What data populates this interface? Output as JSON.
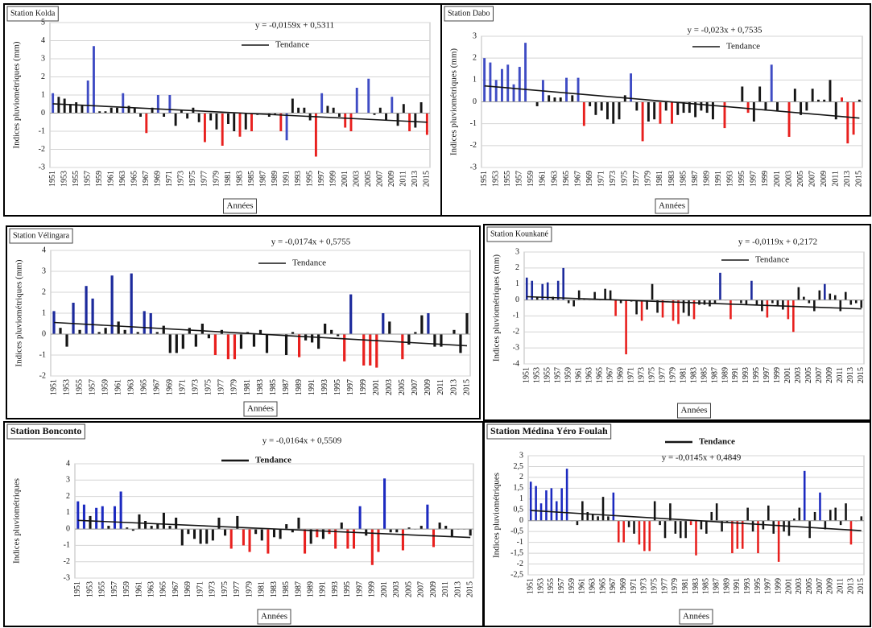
{
  "chart_data": [
    {
      "type": "bar",
      "title": "Station Kolda",
      "ylabel": "Indices pluviométriques (mm)",
      "xlabel": "Années",
      "legend": "Tendance",
      "trend": {
        "label": "y = -0,0159x + 0,5311",
        "slope": -0.0159,
        "intercept": 0.5311
      },
      "categories": [
        "1951",
        null,
        "1953",
        null,
        "1955",
        null,
        "1957",
        null,
        "1959",
        null,
        "1961",
        null,
        "1963",
        null,
        "1965",
        null,
        "1967",
        null,
        "1969",
        null,
        "1971",
        null,
        "1973",
        null,
        "1975",
        null,
        "1977",
        null,
        "1979",
        null,
        "1981",
        null,
        "1983",
        null,
        "1985",
        null,
        "1987",
        null,
        "1989",
        null,
        "1991",
        null,
        "1993",
        null,
        "1995",
        null,
        "1997",
        null,
        "1999",
        null,
        "2001",
        null,
        "2003",
        null,
        "2005",
        null,
        "2007",
        null,
        "2009",
        null,
        "2011",
        null,
        "2013",
        null,
        "2015"
      ],
      "values": [
        1.1,
        0.9,
        0.8,
        0.5,
        0.6,
        0.4,
        1.8,
        3.7,
        0.1,
        0.1,
        0.3,
        0.3,
        1.1,
        0.4,
        0.3,
        -0.2,
        -1.1,
        0.3,
        1.0,
        -0.2,
        1.0,
        -0.7,
        0.2,
        -0.3,
        0.3,
        -0.5,
        -1.6,
        -0.4,
        -0.9,
        -1.8,
        -0.6,
        -1.0,
        -1.3,
        -0.9,
        -1.0,
        -0.1,
        0.0,
        -0.2,
        -0.1,
        -1.0,
        -1.5,
        0.8,
        0.3,
        0.3,
        -0.4,
        -2.4,
        1.1,
        0.4,
        0.3,
        -0.2,
        -0.8,
        -1.0,
        1.4,
        0.0,
        1.9,
        -0.1,
        0.3,
        -0.4,
        0.9,
        -0.7,
        0.5,
        -1.0,
        -0.8,
        0.6,
        -1.2
      ],
      "bar_colors": "bkkkkkbbkkkkbkkkrkbkbkkkkkrkkrkkrkrkkkkrbkkkkrbkkkrrbkbkkkbkkrkkr",
      "palette": {
        "b": "#3f4cc4",
        "k": "#151515",
        "r": "#e8201e"
      },
      "trend_color": "#151515",
      "ylim": [
        -3,
        5
      ],
      "yticks": [
        -3,
        -2,
        -1,
        0,
        1,
        2,
        3,
        4,
        5
      ],
      "grid": true
    },
    {
      "type": "bar",
      "title": "Station Dabo",
      "ylabel": "Indices pluviométriques (mm)",
      "xlabel": "Années",
      "legend": "Tendance",
      "trend": {
        "label": "y = -0,023x + 0,7535",
        "slope": -0.023,
        "intercept": 0.7535
      },
      "categories": [
        "1951",
        null,
        "1953",
        null,
        "1955",
        null,
        "1957",
        null,
        "1959",
        null,
        "1961",
        null,
        "1963",
        null,
        "1965",
        null,
        "1967",
        null,
        "1969",
        null,
        "1971",
        null,
        "1973",
        null,
        "1975",
        null,
        "1977",
        null,
        "1979",
        null,
        "1981",
        null,
        "1983",
        null,
        "1985",
        null,
        "1987",
        null,
        "1989",
        null,
        "1991",
        null,
        "1993",
        null,
        "1995",
        null,
        "1997",
        null,
        "1999",
        null,
        "2001",
        null,
        "2003",
        null,
        "2005",
        null,
        "2007",
        null,
        "2009",
        null,
        "2011",
        null,
        "2013",
        null,
        "2015"
      ],
      "values": [
        2.0,
        1.8,
        1.0,
        1.5,
        1.7,
        0.8,
        1.6,
        2.7,
        0.0,
        -0.2,
        1.0,
        0.3,
        0.2,
        0.2,
        1.1,
        0.3,
        1.1,
        -1.1,
        -0.2,
        -0.6,
        -0.4,
        -0.8,
        -1.0,
        -0.8,
        0.3,
        1.3,
        -0.4,
        -1.8,
        -0.9,
        -0.8,
        -1.0,
        -0.4,
        -1.0,
        -0.6,
        -0.5,
        -0.5,
        -0.7,
        -0.4,
        -0.5,
        -0.8,
        0.0,
        -1.2,
        0.0,
        0.0,
        0.7,
        -0.5,
        -0.9,
        0.7,
        -0.4,
        1.7,
        -0.4,
        0.0,
        -1.6,
        0.6,
        -0.6,
        -0.4,
        0.6,
        0.1,
        0.1,
        1.0,
        -0.8,
        0.2,
        -1.9,
        -1.5,
        0.1
      ],
      "bar_colors": "bbbbbbbbkkbkkkbkbrkkkkkkkbkrkkrkrkkkkkkkkrkkkrkkkbkkrkkkkkkkkrrrk",
      "palette": {
        "b": "#3f4cc4",
        "k": "#151515",
        "r": "#e8201e"
      },
      "trend_color": "#151515",
      "ylim": [
        -3,
        3
      ],
      "yticks": [
        -3,
        -2,
        -1,
        0,
        1,
        2,
        3
      ],
      "grid": true
    },
    {
      "type": "bar",
      "title": "Station Vélingara",
      "ylabel": "Indices pluviométriques (mm)",
      "xlabel": "Années",
      "legend": "Tendance",
      "trend": {
        "label": "y = -0,0174x + 0,5755",
        "slope": -0.0174,
        "intercept": 0.5755
      },
      "categories": [
        "1951",
        null,
        "1953",
        null,
        "1955",
        null,
        "1957",
        null,
        "1959",
        null,
        "1961",
        null,
        "1963",
        null,
        "1965",
        null,
        "1967",
        null,
        "1969",
        null,
        "1971",
        null,
        "1973",
        null,
        "1975",
        null,
        "1977",
        null,
        "1979",
        null,
        "1981",
        null,
        "1983",
        null,
        "1985",
        null,
        "1987",
        null,
        "1989",
        null,
        "1991",
        null,
        "1993",
        null,
        "1995",
        null,
        "1997",
        null,
        "1999",
        null,
        "2001",
        null,
        "2003",
        null,
        "2005",
        null,
        "2007",
        null,
        "2009",
        null,
        "2011",
        null,
        "2013",
        null,
        "2015"
      ],
      "values": [
        1.1,
        0.3,
        -0.6,
        1.5,
        0.2,
        2.3,
        1.7,
        0.1,
        0.3,
        2.8,
        0.6,
        0.2,
        2.9,
        0.1,
        1.1,
        1.0,
        0.1,
        0.4,
        -0.9,
        -0.9,
        -0.7,
        0.3,
        -0.6,
        0.5,
        -0.2,
        -1.0,
        0.2,
        -1.2,
        -1.2,
        -0.7,
        0.1,
        -0.6,
        0.2,
        -0.9,
        0.0,
        0.0,
        -1.0,
        0.1,
        -1.1,
        -0.3,
        -0.4,
        -0.7,
        0.5,
        0.2,
        -0.1,
        -1.3,
        1.9,
        0.0,
        -1.5,
        -1.5,
        -1.6,
        1.0,
        0.6,
        0.0,
        -1.2,
        -0.5,
        0.1,
        0.9,
        1.0,
        -0.6,
        -0.6,
        0.0,
        0.2,
        -0.9,
        1.0
      ],
      "bar_colors": "bkkbkbbkkbkkbkbbkkkkkkkkkrkrrkkkkkkkkkrkkkkkkrbkrrrbkkrkkkbkkkkkk",
      "palette": {
        "b": "#1c2a9c",
        "k": "#151515",
        "r": "#e8201e"
      },
      "trend_color": "#151515",
      "ylim": [
        -2,
        4
      ],
      "yticks": [
        -2,
        -1,
        0,
        1,
        2,
        3,
        4
      ],
      "grid": true
    },
    {
      "type": "bar",
      "title": "Station Kounkané",
      "ylabel": "Indices pluviométriques (mm)",
      "xlabel": "Années",
      "legend": "Tendance",
      "trend": {
        "label": "y = -0,0119x + 0,2172",
        "slope": -0.0119,
        "intercept": 0.2172
      },
      "categories": [
        "1951",
        null,
        "1953",
        null,
        "1955",
        null,
        "1957",
        null,
        "1959",
        null,
        "1961",
        null,
        "1963",
        null,
        "1965",
        null,
        "1967",
        null,
        "1969",
        null,
        "1971",
        null,
        "1973",
        null,
        "1975",
        null,
        "1977",
        null,
        "1979",
        null,
        "1981",
        null,
        "1983",
        null,
        "1985",
        null,
        "1987",
        null,
        "1989",
        null,
        "1991",
        null,
        "1993",
        null,
        "1995",
        null,
        "1997",
        null,
        "1999",
        null,
        "2001",
        null,
        "2003",
        null,
        "2005",
        null,
        "2007",
        null,
        "2009",
        null,
        "2011",
        null,
        "2013",
        null,
        "2015"
      ],
      "values": [
        1.4,
        1.2,
        0.2,
        1.0,
        1.1,
        0.2,
        1.2,
        2.0,
        -0.2,
        -0.4,
        0.6,
        0.1,
        0.0,
        0.5,
        0.0,
        0.7,
        0.6,
        -1.0,
        -0.2,
        -3.4,
        -0.1,
        -0.9,
        -1.3,
        -0.6,
        1.0,
        -0.8,
        -1.1,
        0.0,
        -1.3,
        -1.5,
        -0.8,
        -1.0,
        -1.2,
        -0.3,
        -0.3,
        -0.4,
        -0.2,
        1.7,
        0.0,
        -1.2,
        0.0,
        -0.2,
        -0.3,
        1.2,
        -0.3,
        -0.7,
        -1.1,
        -0.2,
        -0.4,
        -0.6,
        -1.2,
        -2.0,
        0.8,
        0.2,
        -0.2,
        -0.7,
        0.6,
        1.0,
        0.4,
        0.3,
        -0.7,
        0.5,
        -0.3,
        -0.2,
        -0.5
      ],
      "bar_colors": "bbkbbkbbkkkkkkkkkrkrkkrkkkrkrrkkrkkkkbkrkkkbkkrkkkrrkkkkkbkkkkkkk",
      "palette": {
        "b": "#1c2a9c",
        "k": "#151515",
        "r": "#e8201e"
      },
      "trend_color": "#151515",
      "ylim": [
        -4,
        3
      ],
      "yticks": [
        -4,
        -3,
        -2,
        -1,
        0,
        1,
        2,
        3
      ],
      "grid": true
    },
    {
      "type": "bar",
      "title": "Station Bonconto",
      "ylabel": "Indices pluviométriques",
      "xlabel": "Années",
      "legend": "Tendance",
      "trend": {
        "label": "y = -0,0164x + 0,5509",
        "slope": -0.0164,
        "intercept": 0.5509
      },
      "categories": [
        "1951",
        null,
        "1953",
        null,
        "1955",
        null,
        "1957",
        null,
        "1959",
        null,
        "1961",
        null,
        "1963",
        null,
        "1965",
        null,
        "1967",
        null,
        "1969",
        null,
        "1971",
        null,
        "1973",
        null,
        "1975",
        null,
        "1977",
        null,
        "1979",
        null,
        "1981",
        null,
        "1983",
        null,
        "1985",
        null,
        "1987",
        null,
        "1989",
        null,
        "1991",
        null,
        "1993",
        null,
        "1995",
        null,
        "1997",
        null,
        "1999",
        null,
        "2001",
        null,
        "2003",
        null,
        "2005",
        null,
        "2007",
        null,
        "2009",
        null,
        "2011",
        null,
        "2013",
        null,
        "2015"
      ],
      "values": [
        1.7,
        1.5,
        0.8,
        1.3,
        1.4,
        0.2,
        1.4,
        2.3,
        0.1,
        -0.1,
        0.9,
        0.5,
        0.2,
        0.3,
        1.0,
        0.2,
        0.7,
        -1.0,
        -0.3,
        -0.6,
        -0.9,
        -0.9,
        -0.7,
        0.7,
        -0.4,
        -1.2,
        0.8,
        -1.0,
        -1.4,
        -0.3,
        -0.7,
        -1.5,
        -0.5,
        -0.6,
        0.3,
        -0.2,
        0.7,
        -1.5,
        -0.9,
        -0.5,
        -0.6,
        -0.3,
        -1.2,
        0.4,
        -1.2,
        -1.2,
        1.4,
        -0.4,
        -2.2,
        -1.4,
        3.1,
        -0.2,
        -0.2,
        -1.3,
        0.1,
        0.0,
        0.2,
        1.5,
        -1.1,
        0.4,
        0.2,
        -0.5,
        0.0,
        0.0,
        -0.4
      ],
      "bar_colors": "bbkbbkbbkkkkkkkkkkkkkkkkkrkrrkkrkkkkkrkrkrrkrrbkrrbkkrkkkbrkkkkkk",
      "palette": {
        "b": "#1c2ac0",
        "k": "#151515",
        "r": "#e8201e"
      },
      "trend_color": "#151515",
      "ylim": [
        -3,
        4
      ],
      "yticks": [
        -3,
        -2,
        -1,
        0,
        1,
        2,
        3,
        4
      ],
      "grid": true
    },
    {
      "type": "bar",
      "title": "Station Médina Yéro Foulah",
      "ylabel": "Indices pluviométriques",
      "xlabel": "Années",
      "legend": "Tendance",
      "trend": {
        "label": "y = -0,0145x + 0,4849",
        "slope": -0.0145,
        "intercept": 0.4849
      },
      "categories": [
        "1951",
        null,
        "1953",
        null,
        "1955",
        null,
        "1957",
        null,
        "1959",
        null,
        "1961",
        null,
        "1963",
        null,
        "1965",
        null,
        "1967",
        null,
        "1969",
        null,
        "1971",
        null,
        "1973",
        null,
        "1975",
        null,
        "1977",
        null,
        "1979",
        null,
        "1981",
        null,
        "1983",
        null,
        "1985",
        null,
        "1987",
        null,
        "1989",
        null,
        "1991",
        null,
        "1993",
        null,
        "1995",
        null,
        "1997",
        null,
        "1999",
        null,
        "2001",
        null,
        "2003",
        null,
        "2005",
        null,
        "2007",
        null,
        "2009",
        null,
        "2011",
        null,
        "2013",
        null,
        "2015"
      ],
      "values": [
        1.8,
        1.6,
        0.8,
        1.4,
        1.5,
        0.9,
        1.5,
        2.4,
        0.0,
        -0.2,
        0.9,
        0.4,
        0.3,
        0.2,
        1.1,
        0.2,
        1.3,
        -1.0,
        -1.0,
        -0.3,
        -0.6,
        -1.1,
        -1.4,
        -1.4,
        0.9,
        -0.2,
        -0.8,
        0.8,
        -0.6,
        -0.8,
        -0.8,
        -0.2,
        -1.6,
        -0.4,
        -0.6,
        0.4,
        0.8,
        -0.5,
        -0.1,
        -1.5,
        -1.3,
        -1.3,
        0.6,
        -0.5,
        -1.5,
        -0.4,
        0.7,
        -0.6,
        -1.9,
        -0.5,
        -0.7,
        0.1,
        0.6,
        2.3,
        -0.8,
        0.4,
        1.3,
        -0.4,
        0.5,
        0.6,
        -0.2,
        0.8,
        -1.1,
        0.0,
        0.2
      ],
      "bar_colors": "bbbbbbbbkkkkkkkkbrrkkrrrkkkkkkkrrkkkkkkrrrkkrkkkrkkkkbkkbkkkkkrkk",
      "palette": {
        "b": "#1c2ac0",
        "k": "#151515",
        "r": "#e8201e"
      },
      "trend_color": "#151515",
      "ylim": [
        -2.5,
        3
      ],
      "yticks": [
        {
          "value": -2.5,
          "label": "-2,5"
        },
        -2,
        {
          "value": -1.5,
          "label": "-1,5"
        },
        -1,
        {
          "value": -0.5,
          "label": "-0,5"
        },
        0,
        {
          "value": 0.5,
          "label": "0,5"
        },
        1,
        {
          "value": 1.5,
          "label": "1,5"
        },
        2,
        {
          "value": 2.5,
          "label": "2,5"
        },
        3
      ],
      "grid": true
    }
  ]
}
